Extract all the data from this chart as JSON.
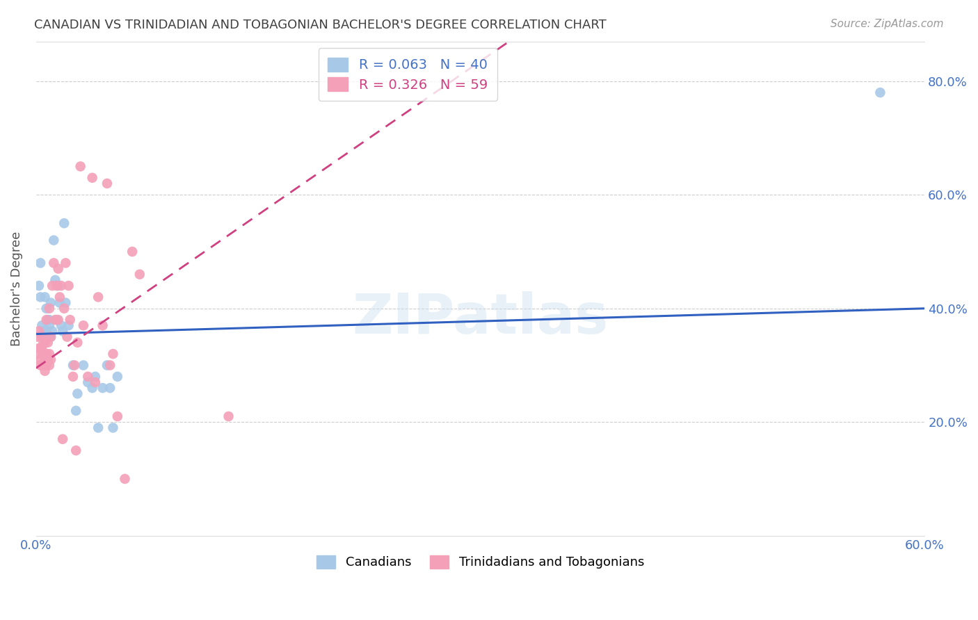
{
  "title": "CANADIAN VS TRINIDADIAN AND TOBAGONIAN BACHELOR'S DEGREE CORRELATION CHART",
  "source": "Source: ZipAtlas.com",
  "ylabel": "Bachelor's Degree",
  "watermark": "ZIPatlas",
  "legend_top": [
    {
      "label": "R = 0.063   N = 40",
      "color": "#6baed6"
    },
    {
      "label": "R = 0.326   N = 59",
      "color": "#fa9fb5"
    }
  ],
  "canadians_color": "#a8c8e8",
  "trinidadians_color": "#f4a0b8",
  "canadians_trend_color": "#3060c0",
  "trinidadians_trend_color": "#d04080",
  "background_color": "#ffffff",
  "grid_color": "#cccccc",
  "tick_label_color": "#4472c4",
  "title_color": "#404040",
  "canadians_x": [
    0.002,
    0.003,
    0.003,
    0.004,
    0.005,
    0.005,
    0.006,
    0.006,
    0.007,
    0.007,
    0.008,
    0.009,
    0.009,
    0.01,
    0.01,
    0.011,
    0.012,
    0.013,
    0.014,
    0.015,
    0.016,
    0.017,
    0.018,
    0.019,
    0.02,
    0.022,
    0.025,
    0.027,
    0.028,
    0.032,
    0.035,
    0.038,
    0.04,
    0.042,
    0.045,
    0.048,
    0.05,
    0.052,
    0.055,
    0.57
  ],
  "canadians_y": [
    0.44,
    0.48,
    0.42,
    0.37,
    0.32,
    0.36,
    0.35,
    0.42,
    0.36,
    0.4,
    0.38,
    0.37,
    0.38,
    0.35,
    0.41,
    0.36,
    0.52,
    0.45,
    0.38,
    0.44,
    0.41,
    0.37,
    0.36,
    0.55,
    0.41,
    0.37,
    0.3,
    0.22,
    0.25,
    0.3,
    0.27,
    0.26,
    0.28,
    0.19,
    0.26,
    0.3,
    0.26,
    0.19,
    0.28,
    0.78
  ],
  "trinidadians_x": [
    0.001,
    0.001,
    0.002,
    0.002,
    0.003,
    0.003,
    0.003,
    0.004,
    0.004,
    0.004,
    0.005,
    0.005,
    0.005,
    0.006,
    0.006,
    0.006,
    0.007,
    0.007,
    0.007,
    0.008,
    0.008,
    0.009,
    0.009,
    0.009,
    0.01,
    0.01,
    0.011,
    0.012,
    0.013,
    0.014,
    0.015,
    0.015,
    0.016,
    0.017,
    0.018,
    0.019,
    0.02,
    0.021,
    0.022,
    0.023,
    0.025,
    0.026,
    0.027,
    0.028,
    0.03,
    0.032,
    0.035,
    0.038,
    0.04,
    0.042,
    0.045,
    0.048,
    0.05,
    0.052,
    0.055,
    0.06,
    0.065,
    0.07,
    0.13
  ],
  "trinidadians_y": [
    0.32,
    0.35,
    0.33,
    0.36,
    0.3,
    0.31,
    0.33,
    0.3,
    0.33,
    0.35,
    0.3,
    0.32,
    0.34,
    0.29,
    0.31,
    0.34,
    0.3,
    0.32,
    0.38,
    0.31,
    0.34,
    0.3,
    0.32,
    0.4,
    0.31,
    0.35,
    0.44,
    0.48,
    0.38,
    0.44,
    0.47,
    0.38,
    0.42,
    0.44,
    0.17,
    0.4,
    0.48,
    0.35,
    0.44,
    0.38,
    0.28,
    0.3,
    0.15,
    0.34,
    0.65,
    0.37,
    0.28,
    0.63,
    0.27,
    0.42,
    0.37,
    0.62,
    0.3,
    0.32,
    0.21,
    0.1,
    0.5,
    0.46,
    0.21
  ],
  "xlim": [
    0,
    0.6
  ],
  "ylim": [
    0.0,
    0.87
  ],
  "ytick_vals": [
    0.2,
    0.4,
    0.6,
    0.8
  ],
  "canadians_trend_intercept": 0.355,
  "canadians_trend_slope": 0.075,
  "trinidadians_trend_intercept": 0.295,
  "trinidadians_trend_slope": 1.8
}
